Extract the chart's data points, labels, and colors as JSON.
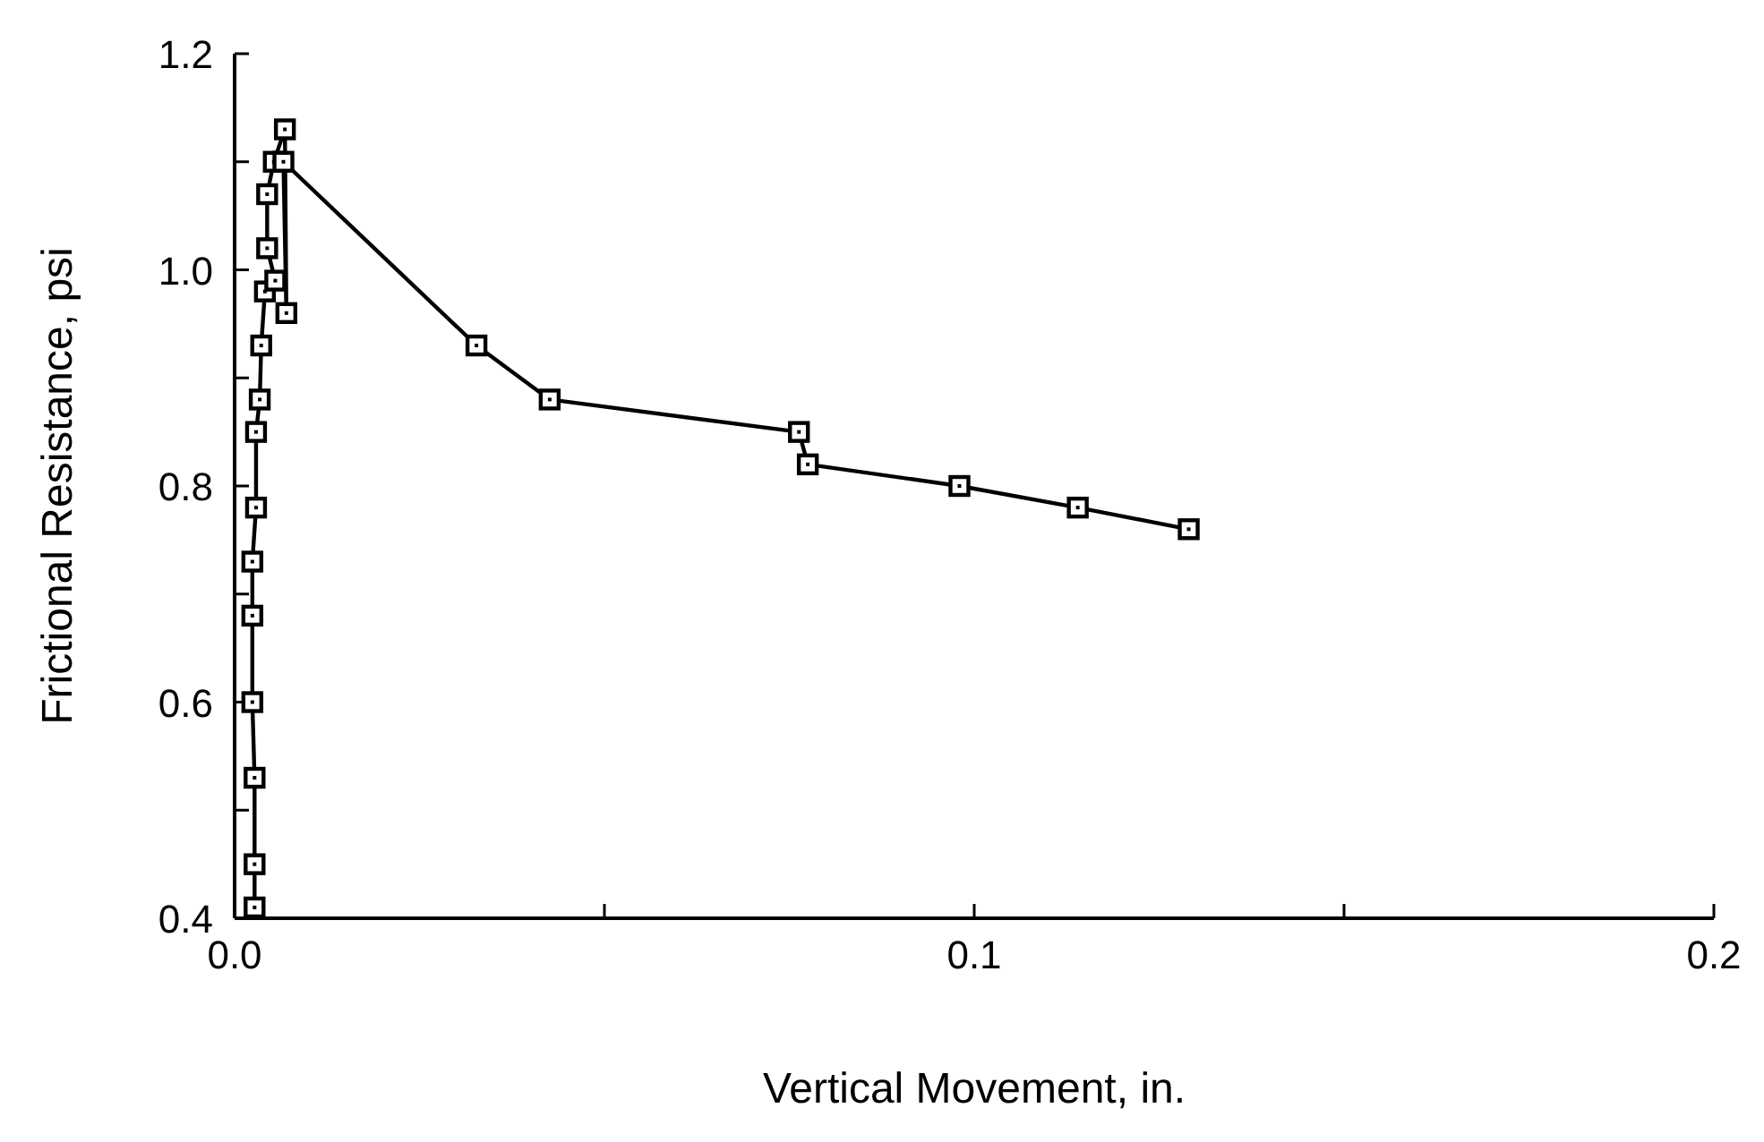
{
  "chart_data": {
    "type": "line",
    "xlabel": "Vertical Movement, in.",
    "ylabel": "Frictional Resistance, psi",
    "marker": "square",
    "line_style": "solid",
    "grid": false,
    "xlim": [
      0,
      0.2
    ],
    "ylim": [
      0.4,
      1.2
    ],
    "xticks": [
      {
        "value": 0,
        "label": "0.0"
      },
      {
        "value": 0.05,
        "label": null
      },
      {
        "value": 0.1,
        "label": "0.1"
      },
      {
        "value": 0.15,
        "label": null
      },
      {
        "value": 0.2,
        "label": "0.2"
      }
    ],
    "yticks": [
      {
        "value": 0.4,
        "label": "0.4"
      },
      {
        "value": 0.5,
        "label": null
      },
      {
        "value": 0.6,
        "label": "0.6"
      },
      {
        "value": 0.7,
        "label": null
      },
      {
        "value": 0.8,
        "label": "0.8"
      },
      {
        "value": 0.9,
        "label": null
      },
      {
        "value": 1.0,
        "label": "1.0"
      },
      {
        "value": 1.1,
        "label": null
      },
      {
        "value": 1.2,
        "label": "1.2"
      }
    ],
    "series": [
      {
        "color": "#000000",
        "x": [
          0.0027,
          0.0027,
          0.0027,
          0.0024,
          0.0024,
          0.0024,
          0.0029,
          0.0029,
          0.0034,
          0.0036,
          0.0041,
          0.0055,
          0.0044,
          0.0044,
          0.0053,
          0.0068,
          0.007,
          0.0066,
          0.0327,
          0.0426,
          0.0763,
          0.0775,
          0.098,
          0.114,
          0.129
        ],
        "values": [
          0.41,
          0.45,
          0.53,
          0.6,
          0.68,
          0.73,
          0.78,
          0.85,
          0.88,
          0.93,
          0.98,
          0.99,
          1.02,
          1.07,
          1.1,
          1.13,
          0.96,
          1.1,
          0.93,
          0.88,
          0.85,
          0.82,
          0.8,
          0.78,
          0.76
        ]
      }
    ]
  }
}
